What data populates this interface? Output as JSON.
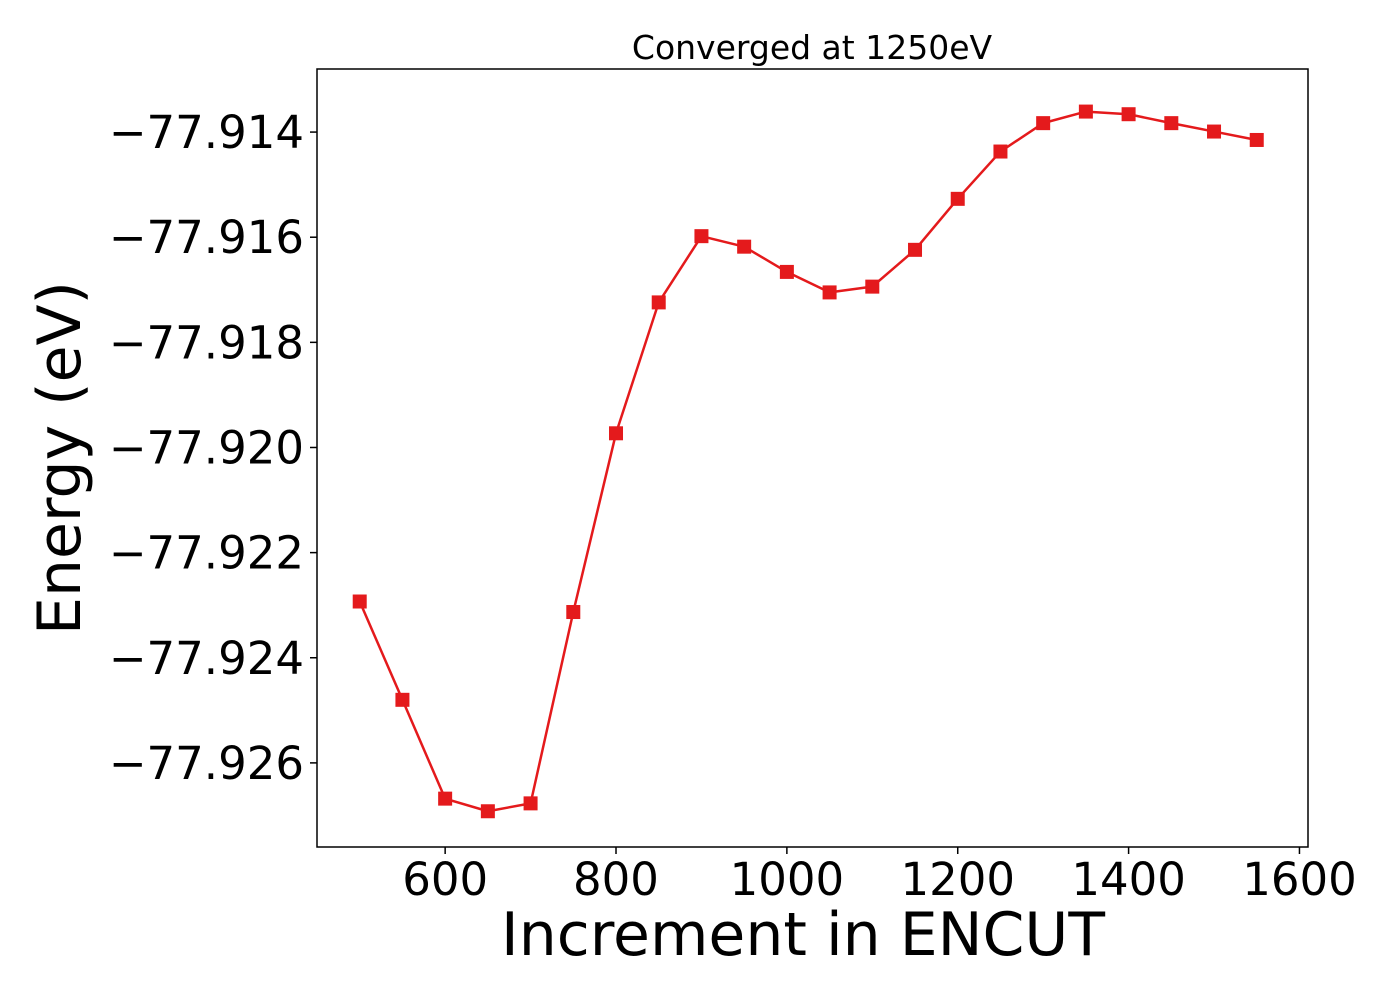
{
  "chart_data": {
    "type": "line",
    "title": "Converged at 1250eV",
    "xlabel": "Increment in ENCUT",
    "ylabel": "Energy (eV)",
    "xlim": [
      450,
      1610
    ],
    "ylim": [
      -77.9276,
      -77.9128
    ],
    "xticks": [
      600,
      800,
      1000,
      1200,
      1400,
      1600
    ],
    "yticks": [
      -77.926,
      -77.924,
      -77.922,
      -77.92,
      -77.918,
      -77.916,
      -77.914
    ],
    "ytick_labels": [
      "−77.926",
      "−77.924",
      "−77.922",
      "−77.920",
      "−77.918",
      "−77.916",
      "−77.914"
    ],
    "grid": false,
    "series": [
      {
        "color": "#e41a1c",
        "marker": "square",
        "x": [
          500,
          550,
          600,
          650,
          700,
          750,
          800,
          850,
          900,
          950,
          1000,
          1050,
          1100,
          1150,
          1200,
          1250,
          1300,
          1350,
          1400,
          1450,
          1500,
          1550
        ],
        "y": [
          -77.92293,
          -77.9248,
          -77.92668,
          -77.92692,
          -77.92677,
          -77.92313,
          -77.91973,
          -77.91724,
          -77.91598,
          -77.91618,
          -77.91666,
          -77.91705,
          -77.91694,
          -77.91624,
          -77.91527,
          -77.91437,
          -77.91383,
          -77.91361,
          -77.91366,
          -77.91383,
          -77.91399,
          -77.91415
        ]
      }
    ]
  }
}
